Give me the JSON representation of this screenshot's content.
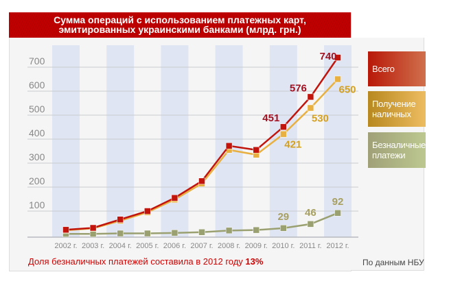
{
  "chart_data": {
    "type": "line",
    "title": "Сумма операций с использованием платежных карт, эмитированных украинскими банками (млрд. грн.)",
    "title_lines": [
      "Сумма операций с использованием платежных карт,",
      "эмитированных украинскими банками (млрд. грн.)"
    ],
    "categories": [
      "2002 г.",
      "2003 г.",
      "2004 г.",
      "2005 г.",
      "2006 г.",
      "2007 г.",
      "2008 г.",
      "2009 г.",
      "2010 г.",
      "2011 г.",
      "2012 г."
    ],
    "yticks": [
      "100",
      "200",
      "300",
      "400",
      "500",
      "600",
      "700"
    ],
    "ylim": [
      0,
      760
    ],
    "series": [
      {
        "name": "Всего",
        "color": "#c0140c",
        "values": [
          22,
          30,
          65,
          100,
          155,
          225,
          372,
          355,
          451,
          576,
          740
        ],
        "labels": {
          "8": "451",
          "9": "576",
          "10": "740"
        },
        "label_color": "#a01020"
      },
      {
        "name": "Получение наличных",
        "color": "#e8b040",
        "values": [
          20,
          28,
          60,
          95,
          148,
          215,
          355,
          335,
          421,
          530,
          650
        ],
        "labels": {
          "8": "421",
          "9": "530",
          "10": "650"
        },
        "label_color": "#d4a020"
      },
      {
        "name": "Безналичные платежи",
        "color": "#9aa070",
        "values": [
          5,
          5,
          7,
          7,
          9,
          12,
          19,
          21,
          29,
          46,
          92
        ],
        "labels": {
          "8": "29",
          "9": "46",
          "10": "92"
        },
        "label_color": "#a8a060"
      }
    ],
    "legend": [
      "Всего",
      "Получение наличных",
      "Безналичные платежи"
    ],
    "legend_lines": [
      [
        "Всего"
      ],
      [
        "Получение",
        "наличных"
      ],
      [
        "Безналичные",
        "платежи"
      ]
    ],
    "legend_colors": [
      [
        "#b81808",
        "#d0704c"
      ],
      [
        "#b88820",
        "#ecbc60"
      ],
      [
        "#a0a078",
        "#bcc890"
      ]
    ]
  },
  "footer": {
    "note_prefix": "Доля безналичных платежей составила в 2012 году ",
    "note_value": "13%",
    "source": "По данным НБУ"
  }
}
